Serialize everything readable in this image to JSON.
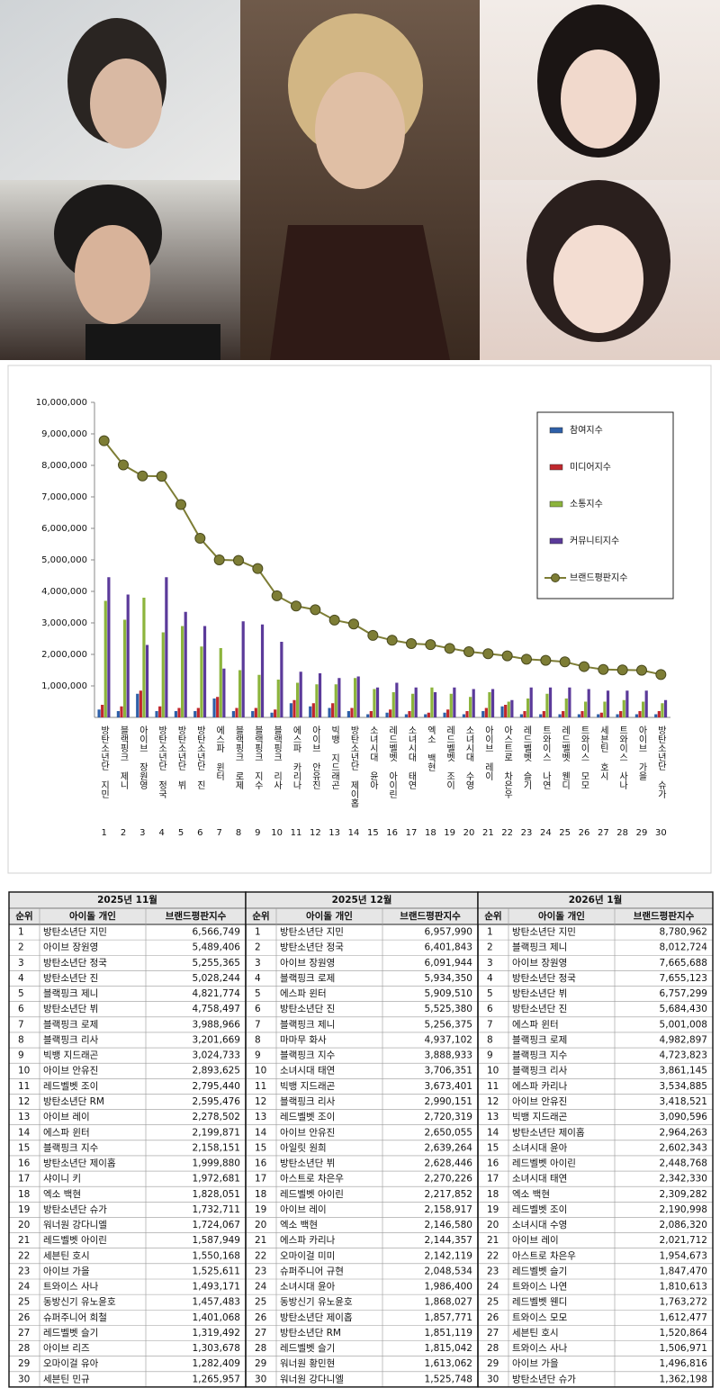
{
  "chart_data": {
    "type": "bar",
    "categories": [
      "방탄소년단 지민",
      "블랙핑크 제니",
      "아이브 장원영",
      "방탄소년단 정국",
      "방탄소년단 뷔",
      "방탄소년단 진",
      "에스파 윈터",
      "블랙핑크 로제",
      "블랙핑크 지수",
      "블랙핑크 리사",
      "에스파 카리나",
      "아이브 안유진",
      "빅뱅 지드래곤",
      "방탄소년단 제이홉",
      "소녀시대 윤아",
      "레드벨벳 아이린",
      "소녀시대 태연",
      "엑소 백현",
      "레드벨벳 조이",
      "소녀시대 수영",
      "아이브 레이",
      "아스트로 차은우",
      "레드벨벳 슬기",
      "트와이스 나연",
      "레드벨벳 웬디",
      "트와이스 모모",
      "세븐틴 호시",
      "트와이스 사나",
      "아이브 가을",
      "방탄소년단 슈가"
    ],
    "rank_labels": [
      1,
      2,
      3,
      4,
      5,
      6,
      7,
      8,
      9,
      10,
      11,
      12,
      13,
      14,
      15,
      16,
      17,
      18,
      19,
      20,
      21,
      22,
      23,
      24,
      25,
      26,
      27,
      28,
      29,
      30
    ],
    "series": [
      {
        "name": "참여지수",
        "color": "#2e5fa8",
        "values": [
          250000,
          200000,
          750000,
          200000,
          200000,
          200000,
          600000,
          200000,
          200000,
          150000,
          450000,
          350000,
          300000,
          200000,
          100000,
          150000,
          100000,
          100000,
          150000,
          100000,
          200000,
          350000,
          100000,
          100000,
          100000,
          100000,
          100000,
          100000,
          100000,
          100000
        ]
      },
      {
        "name": "미디어지수",
        "color": "#c0272d",
        "values": [
          400000,
          350000,
          850000,
          350000,
          300000,
          300000,
          650000,
          300000,
          300000,
          250000,
          550000,
          450000,
          450000,
          300000,
          200000,
          250000,
          200000,
          150000,
          250000,
          200000,
          300000,
          400000,
          200000,
          200000,
          200000,
          200000,
          150000,
          200000,
          200000,
          200000
        ]
      },
      {
        "name": "소통지수",
        "color": "#8cb43c",
        "values": [
          3700000,
          3100000,
          3800000,
          2700000,
          2900000,
          2250000,
          2200000,
          1500000,
          1350000,
          1200000,
          1100000,
          1050000,
          1050000,
          1250000,
          900000,
          800000,
          750000,
          950000,
          750000,
          650000,
          800000,
          500000,
          600000,
          750000,
          600000,
          500000,
          500000,
          550000,
          500000,
          450000
        ]
      },
      {
        "name": "커뮤니티지수",
        "color": "#5b3a9a",
        "values": [
          4450000,
          3900000,
          2300000,
          4450000,
          3350000,
          2900000,
          1550000,
          3050000,
          2950000,
          2400000,
          1450000,
          1400000,
          1250000,
          1300000,
          950000,
          1100000,
          950000,
          800000,
          950000,
          900000,
          900000,
          550000,
          950000,
          950000,
          950000,
          900000,
          850000,
          850000,
          850000,
          550000
        ]
      },
      {
        "name": "브랜드평판지수",
        "color": "#7d7d35",
        "marker": "line",
        "values": [
          8780962,
          8012724,
          7665688,
          7655123,
          6757299,
          5684430,
          5001008,
          4982897,
          4723823,
          3861145,
          3534885,
          3418521,
          3090596,
          2964263,
          2602343,
          2448768,
          2342330,
          2309282,
          2190998,
          2086320,
          2021712,
          1954673,
          1847470,
          1810613,
          1763272,
          1612477,
          1520864,
          1506971,
          1496816,
          1362198
        ]
      }
    ],
    "ylim": [
      0,
      10000000
    ],
    "yticks": [
      {
        "value": 1000000,
        "label": "1,000,000"
      },
      {
        "value": 2000000,
        "label": "2,000,000"
      },
      {
        "value": 3000000,
        "label": "3,000,000"
      },
      {
        "value": 4000000,
        "label": "4,000,000"
      },
      {
        "value": 5000000,
        "label": "5,000,000"
      },
      {
        "value": 6000000,
        "label": "6,000,000"
      },
      {
        "value": 7000000,
        "label": "7,000,000"
      },
      {
        "value": 8000000,
        "label": "8,000,000"
      },
      {
        "value": 9000000,
        "label": "9,000,000"
      },
      {
        "value": 10000000,
        "label": "10,000,000"
      }
    ],
    "grid": false,
    "legend": "upper right"
  },
  "table": {
    "columns": [
      "순위",
      "아이돌 개인",
      "브랜드평판지수"
    ],
    "groups": [
      {
        "title": "2025년 11월",
        "rows": [
          [
            1,
            "방탄소년단 지민",
            "6,566,749"
          ],
          [
            2,
            "아이브 장원영",
            "5,489,406"
          ],
          [
            3,
            "방탄소년단 정국",
            "5,255,365"
          ],
          [
            4,
            "방탄소년단 진",
            "5,028,244"
          ],
          [
            5,
            "블랙핑크 제니",
            "4,821,774"
          ],
          [
            6,
            "방탄소년단 뷔",
            "4,758,497"
          ],
          [
            7,
            "블랙핑크 로제",
            "3,988,966"
          ],
          [
            8,
            "블랙핑크 리사",
            "3,201,669"
          ],
          [
            9,
            "빅뱅 지드래곤",
            "3,024,733"
          ],
          [
            10,
            "아이브 안유진",
            "2,893,625"
          ],
          [
            11,
            "레드벨벳 조이",
            "2,795,440"
          ],
          [
            12,
            "방탄소년단 RM",
            "2,595,476"
          ],
          [
            13,
            "아이브 레이",
            "2,278,502"
          ],
          [
            14,
            "에스파 윈터",
            "2,199,871"
          ],
          [
            15,
            "블랙핑크 지수",
            "2,158,151"
          ],
          [
            16,
            "방탄소년단 제이홉",
            "1,999,880"
          ],
          [
            17,
            "샤이니 키",
            "1,972,681"
          ],
          [
            18,
            "엑소 백현",
            "1,828,051"
          ],
          [
            19,
            "방탄소년단 슈가",
            "1,732,711"
          ],
          [
            20,
            "워너원 강다니엘",
            "1,724,067"
          ],
          [
            21,
            "레드벨벳 아이린",
            "1,587,949"
          ],
          [
            22,
            "세븐틴 호시",
            "1,550,168"
          ],
          [
            23,
            "아이브 가을",
            "1,525,611"
          ],
          [
            24,
            "트와이스 사나",
            "1,493,171"
          ],
          [
            25,
            "동방신기 유노윤호",
            "1,457,483"
          ],
          [
            26,
            "슈퍼주니어 희철",
            "1,401,068"
          ],
          [
            27,
            "레드벨벳 슬기",
            "1,319,492"
          ],
          [
            28,
            "아이브 리즈",
            "1,303,678"
          ],
          [
            29,
            "오마이걸 유아",
            "1,282,409"
          ],
          [
            30,
            "세븐틴 민규",
            "1,265,957"
          ]
        ]
      },
      {
        "title": "2025년 12월",
        "rows": [
          [
            1,
            "방탄소년단 지민",
            "6,957,990"
          ],
          [
            2,
            "방탄소년단 정국",
            "6,401,843"
          ],
          [
            3,
            "아이브 장원영",
            "6,091,944"
          ],
          [
            4,
            "블랙핑크 로제",
            "5,934,350"
          ],
          [
            5,
            "에스파 윈터",
            "5,909,510"
          ],
          [
            6,
            "방탄소년단 진",
            "5,525,380"
          ],
          [
            7,
            "블랙핑크 제니",
            "5,256,375"
          ],
          [
            8,
            "마마무 화사",
            "4,937,102"
          ],
          [
            9,
            "블랙핑크 지수",
            "3,888,933"
          ],
          [
            10,
            "소녀시대 태연",
            "3,706,351"
          ],
          [
            11,
            "빅뱅 지드래곤",
            "3,673,401"
          ],
          [
            12,
            "블랙핑크 리사",
            "2,990,151"
          ],
          [
            13,
            "레드벨벳 조이",
            "2,720,319"
          ],
          [
            14,
            "아이브 안유진",
            "2,650,055"
          ],
          [
            15,
            "아일릿 원희",
            "2,639,264"
          ],
          [
            16,
            "방탄소년단 뷔",
            "2,628,446"
          ],
          [
            17,
            "아스트로 차은우",
            "2,270,226"
          ],
          [
            18,
            "레드벨벳 아이린",
            "2,217,852"
          ],
          [
            19,
            "아이브 레이",
            "2,158,917"
          ],
          [
            20,
            "엑소 백현",
            "2,146,580"
          ],
          [
            21,
            "에스파 카리나",
            "2,144,357"
          ],
          [
            22,
            "오마이걸 미미",
            "2,142,119"
          ],
          [
            23,
            "슈퍼주니어 규현",
            "2,048,534"
          ],
          [
            24,
            "소녀시대 윤아",
            "1,986,400"
          ],
          [
            25,
            "동방신기 유노윤호",
            "1,868,027"
          ],
          [
            26,
            "방탄소년단 제이홉",
            "1,857,771"
          ],
          [
            27,
            "방탄소년단 RM",
            "1,851,119"
          ],
          [
            28,
            "레드벨벳 슬기",
            "1,815,042"
          ],
          [
            29,
            "워너원 황민현",
            "1,613,062"
          ],
          [
            30,
            "워너원 강다니엘",
            "1,525,748"
          ]
        ]
      },
      {
        "title": "2026년 1월",
        "rows": [
          [
            1,
            "방탄소년단 지민",
            "8,780,962"
          ],
          [
            2,
            "블랙핑크 제니",
            "8,012,724"
          ],
          [
            3,
            "아이브 장원영",
            "7,665,688"
          ],
          [
            4,
            "방탄소년단 정국",
            "7,655,123"
          ],
          [
            5,
            "방탄소년단 뷔",
            "6,757,299"
          ],
          [
            6,
            "방탄소년단 진",
            "5,684,430"
          ],
          [
            7,
            "에스파 윈터",
            "5,001,008"
          ],
          [
            8,
            "블랙핑크 로제",
            "4,982,897"
          ],
          [
            9,
            "블랙핑크 지수",
            "4,723,823"
          ],
          [
            10,
            "블랙핑크 리사",
            "3,861,145"
          ],
          [
            11,
            "에스파 카리나",
            "3,534,885"
          ],
          [
            12,
            "아이브 안유진",
            "3,418,521"
          ],
          [
            13,
            "빅뱅 지드래곤",
            "3,090,596"
          ],
          [
            14,
            "방탄소년단 제이홉",
            "2,964,263"
          ],
          [
            15,
            "소녀시대 윤아",
            "2,602,343"
          ],
          [
            16,
            "레드벨벳 아이린",
            "2,448,768"
          ],
          [
            17,
            "소녀시대 태연",
            "2,342,330"
          ],
          [
            18,
            "엑소 백현",
            "2,309,282"
          ],
          [
            19,
            "레드벨벳 조이",
            "2,190,998"
          ],
          [
            20,
            "소녀시대 수영",
            "2,086,320"
          ],
          [
            21,
            "아이브 레이",
            "2,021,712"
          ],
          [
            22,
            "아스트로 차은우",
            "1,954,673"
          ],
          [
            23,
            "레드벨벳 슬기",
            "1,847,470"
          ],
          [
            24,
            "트와이스 나연",
            "1,810,613"
          ],
          [
            25,
            "레드벨벳 웬디",
            "1,763,272"
          ],
          [
            26,
            "트와이스 모모",
            "1,612,477"
          ],
          [
            27,
            "세븐틴 호시",
            "1,520,864"
          ],
          [
            28,
            "트와이스 사나",
            "1,506,971"
          ],
          [
            29,
            "아이브 가을",
            "1,496,816"
          ],
          [
            30,
            "방탄소년단 슈가",
            "1,362,198"
          ]
        ]
      }
    ]
  }
}
